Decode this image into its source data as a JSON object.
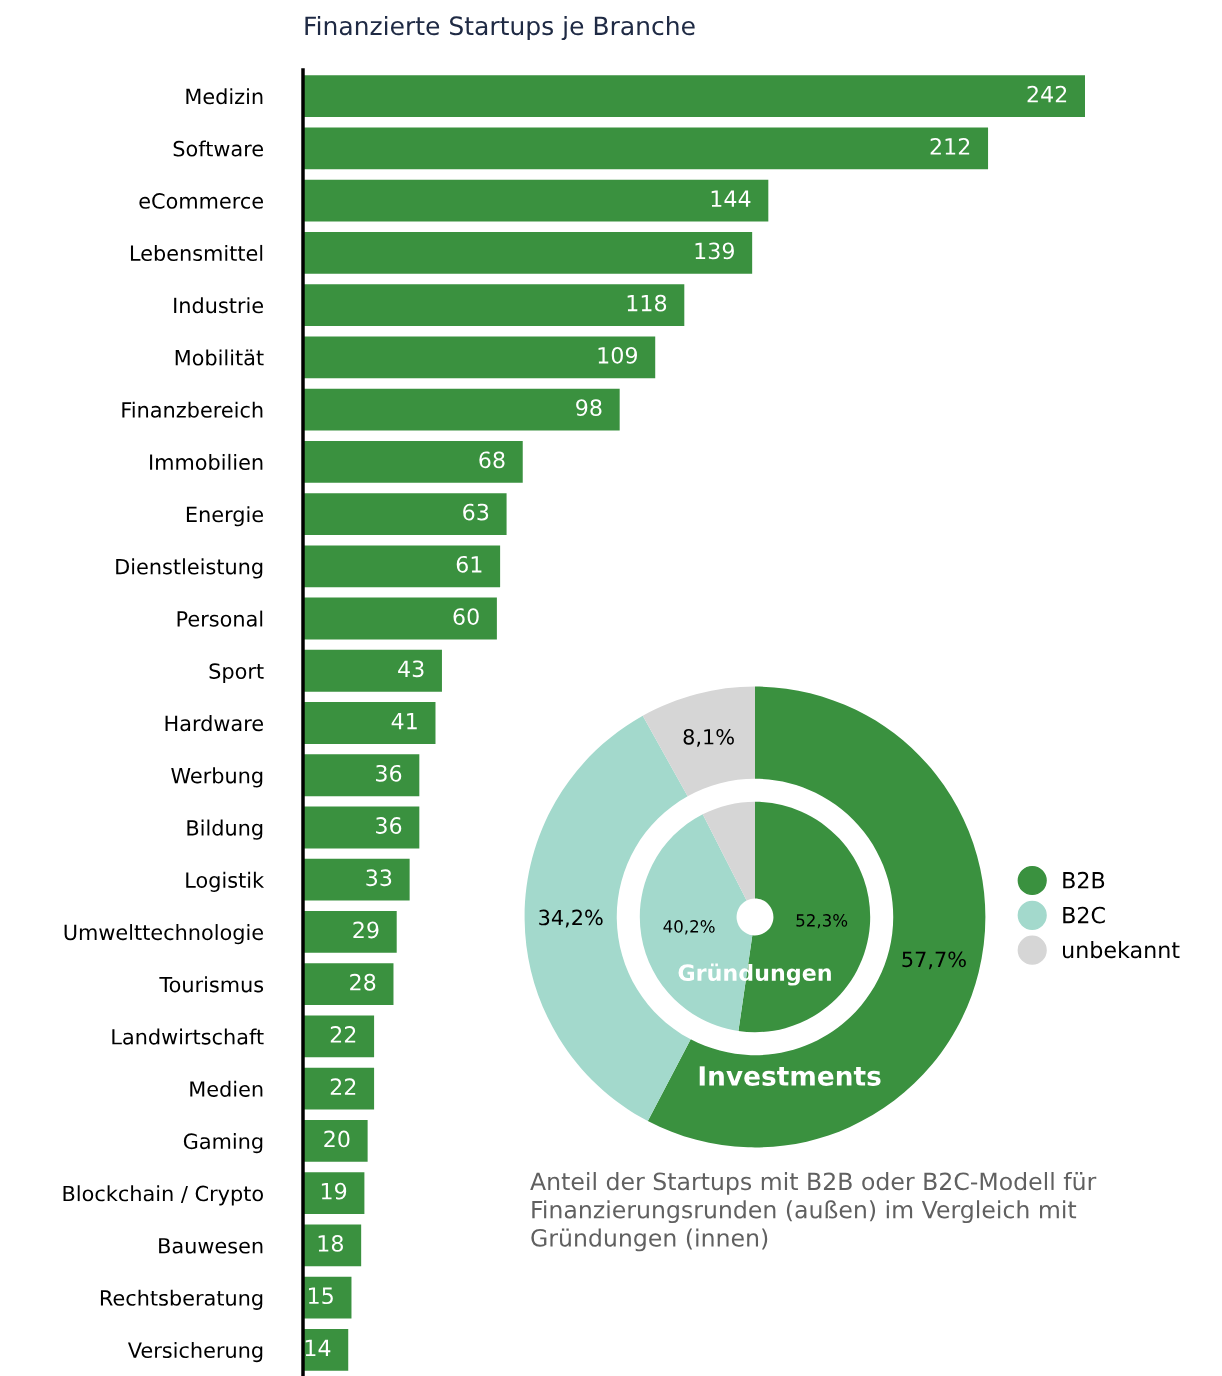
{
  "chart_data": [
    {
      "type": "bar",
      "orientation": "horizontal",
      "title": "Finanzierte Startups je Branche",
      "color": "#3a913f",
      "data_labels": true,
      "grid": false,
      "categories": [
        "Medizin",
        "Software",
        "eCommerce",
        "Lebensmittel",
        "Industrie",
        "Mobilität",
        "Finanzbereich",
        "Immobilien",
        "Energie",
        "Dienstleistung",
        "Personal",
        "Sport",
        "Hardware",
        "Werbung",
        "Bildung",
        "Logistik",
        "Umwelttechnologie",
        "Tourismus",
        "Landwirtschaft",
        "Medien",
        "Gaming",
        "Blockchain / Crypto",
        "Bauwesen",
        "Rechtsberatung",
        "Versicherung"
      ],
      "values": [
        242,
        212,
        144,
        139,
        118,
        109,
        98,
        68,
        63,
        61,
        60,
        43,
        41,
        36,
        36,
        33,
        29,
        28,
        22,
        22,
        20,
        19,
        18,
        15,
        14
      ]
    },
    {
      "type": "donut",
      "legend": "right",
      "categories": [
        "B2B",
        "B2C",
        "unbekannt"
      ],
      "colors": [
        "#3a913f",
        "#a3d9cc",
        "#d6d6d6"
      ],
      "series": [
        {
          "name": "Investments",
          "values": [
            57.7,
            34.2,
            8.1
          ],
          "value_labels": [
            "57,7%",
            "34,2%",
            "8,1%"
          ]
        },
        {
          "name": "Gründungen",
          "values": [
            52.3,
            40.2,
            7.5
          ],
          "value_labels": [
            "52,3%",
            "40,2%",
            null
          ]
        }
      ],
      "annotations": [
        "Anteil der Startups mit B2B oder B2C-Modell für Finanzierungsrunden (außen) im Vergleich mit Gründungen (innen)"
      ]
    }
  ]
}
